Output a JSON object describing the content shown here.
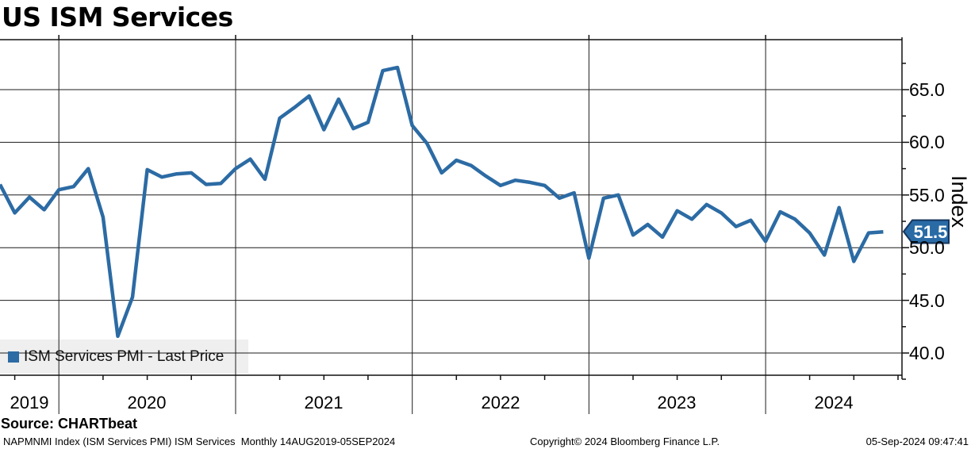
{
  "header": {
    "title": "US ISM Services"
  },
  "legend": {
    "label": "ISM Services PMI - Last Price"
  },
  "y_axis": {
    "title": "Index",
    "ticks": [
      "65.0",
      "60.0",
      "55.0",
      "50.0",
      "45.0",
      "40.0"
    ],
    "last_price_label": "51.5"
  },
  "x_axis": {
    "years": [
      "2019",
      "2020",
      "2021",
      "2022",
      "2023",
      "2024"
    ]
  },
  "footer": {
    "source": "Source: CHARTbeat",
    "meta_left": "NAPMNMI Index (ISM Services PMI) ISM Services  Monthly 14AUG2019-05SEP2024",
    "copyright": "Copyright© 2024 Bloomberg Finance L.P.",
    "timestamp": "05-Sep-2024 09:47:41"
  },
  "colors": {
    "line": "#2c6ba4",
    "tag_fill": "#2a6ba6",
    "tag_border": "#16365d",
    "legend_bg": "#efefef",
    "grid": "#1c1c1c"
  },
  "chart_data": {
    "type": "line",
    "title": "US ISM Services",
    "xlabel": "",
    "ylabel": "Index",
    "ylim": [
      38,
      70
    ],
    "grid": true,
    "legend_position": "bottom-left",
    "frequency": "monthly",
    "range": "14AUG2019-05SEP2024",
    "last_price": 51.5,
    "series_name": "ISM Services PMI - Last Price",
    "x": [
      "2019-08",
      "2019-09",
      "2019-10",
      "2019-11",
      "2019-12",
      "2020-01",
      "2020-02",
      "2020-03",
      "2020-04",
      "2020-05",
      "2020-06",
      "2020-07",
      "2020-08",
      "2020-09",
      "2020-10",
      "2020-11",
      "2020-12",
      "2021-01",
      "2021-02",
      "2021-03",
      "2021-04",
      "2021-05",
      "2021-06",
      "2021-07",
      "2021-08",
      "2021-09",
      "2021-10",
      "2021-11",
      "2021-12",
      "2022-01",
      "2022-02",
      "2022-03",
      "2022-04",
      "2022-05",
      "2022-06",
      "2022-07",
      "2022-08",
      "2022-09",
      "2022-10",
      "2022-11",
      "2022-12",
      "2023-01",
      "2023-02",
      "2023-03",
      "2023-04",
      "2023-05",
      "2023-06",
      "2023-07",
      "2023-08",
      "2023-09",
      "2023-10",
      "2023-11",
      "2023-12",
      "2024-01",
      "2024-02",
      "2024-03",
      "2024-04",
      "2024-05",
      "2024-06",
      "2024-07",
      "2024-08"
    ],
    "values": [
      56.0,
      53.3,
      54.8,
      53.6,
      55.5,
      55.8,
      57.5,
      52.9,
      41.6,
      45.3,
      57.4,
      56.7,
      57.0,
      57.1,
      56.0,
      56.1,
      57.5,
      58.4,
      56.5,
      62.3,
      63.3,
      64.4,
      61.2,
      64.1,
      61.3,
      61.9,
      66.8,
      67.1,
      61.6,
      59.9,
      57.1,
      58.3,
      57.8,
      56.8,
      55.9,
      56.4,
      56.2,
      55.9,
      54.7,
      55.2,
      49.0,
      54.7,
      55.0,
      51.2,
      52.2,
      51.0,
      53.5,
      52.7,
      54.1,
      53.3,
      52.0,
      52.6,
      50.6,
      53.4,
      52.7,
      51.4,
      49.3,
      53.8,
      48.7,
      51.4,
      51.5
    ]
  }
}
